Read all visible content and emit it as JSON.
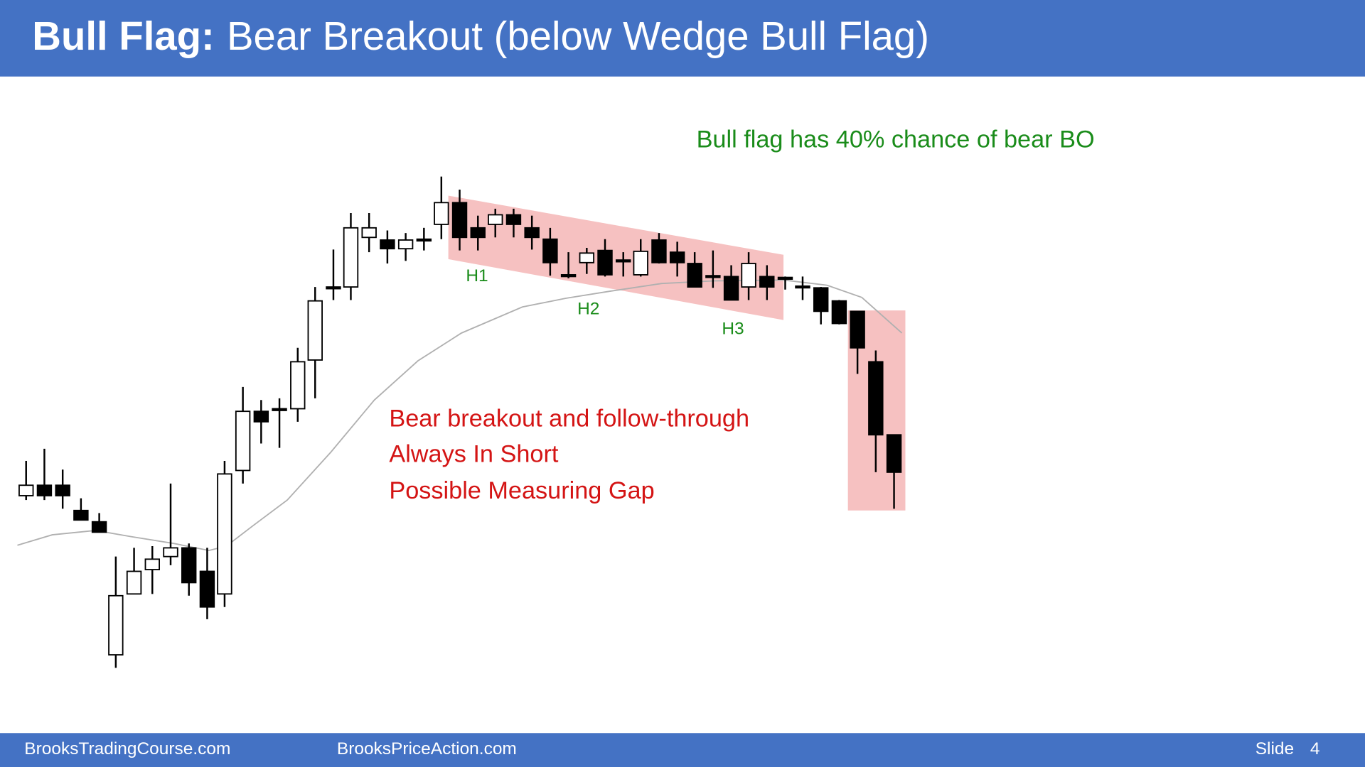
{
  "header": {
    "title_bold": "Bull Flag:",
    "title_rest": "Bear Breakout (below Wedge Bull Flag)"
  },
  "annotations": {
    "probability": "Bull flag has 40% chance of bear BO",
    "labels": [
      "H1",
      "H2",
      "H3"
    ],
    "breakout_notes": [
      "Bear breakout and follow-through",
      "Always In Short",
      "Possible Measuring Gap"
    ]
  },
  "footer": {
    "left": "BrooksTradingCourse.com",
    "center": "BrooksPriceAction.com",
    "slide_label": "Slide",
    "slide_number": "4"
  }
}
